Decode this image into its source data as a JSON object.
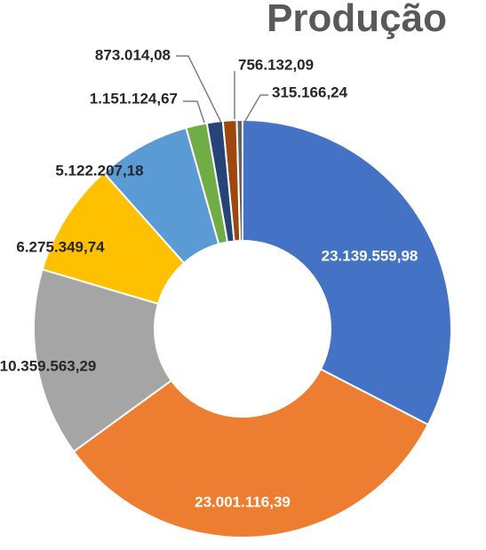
{
  "chart_data": {
    "type": "donut",
    "title": "Produção",
    "slices": [
      {
        "label": "23.139.559,98",
        "value": 23139559.98,
        "color": "#4472c4",
        "label_color": "#ffffff"
      },
      {
        "label": "23.001.116,39",
        "value": 23001116.39,
        "color": "#ed7d31",
        "label_color": "#ffffff"
      },
      {
        "label": "10.359.563,29",
        "value": 10359563.29,
        "color": "#a5a5a5",
        "label_color": "#262626"
      },
      {
        "label": "6.275.349,74",
        "value": 6275349.74,
        "color": "#ffc000",
        "label_color": "#262626"
      },
      {
        "label": "5.122.207,18",
        "value": 5122207.18,
        "color": "#5b9bd5",
        "label_color": "#262626"
      },
      {
        "label": "1.151.124,67",
        "value": 1151124.67,
        "color": "#70ad47",
        "label_color": "#262626"
      },
      {
        "label": "873.014,08",
        "value": 873014.08,
        "color": "#264478",
        "label_color": "#262626"
      },
      {
        "label": "756.132,09",
        "value": 756132.09,
        "color": "#9e480e",
        "label_color": "#262626"
      },
      {
        "label": "315.166,24",
        "value": 315166.24,
        "color": "#636363",
        "label_color": "#262626"
      }
    ]
  }
}
